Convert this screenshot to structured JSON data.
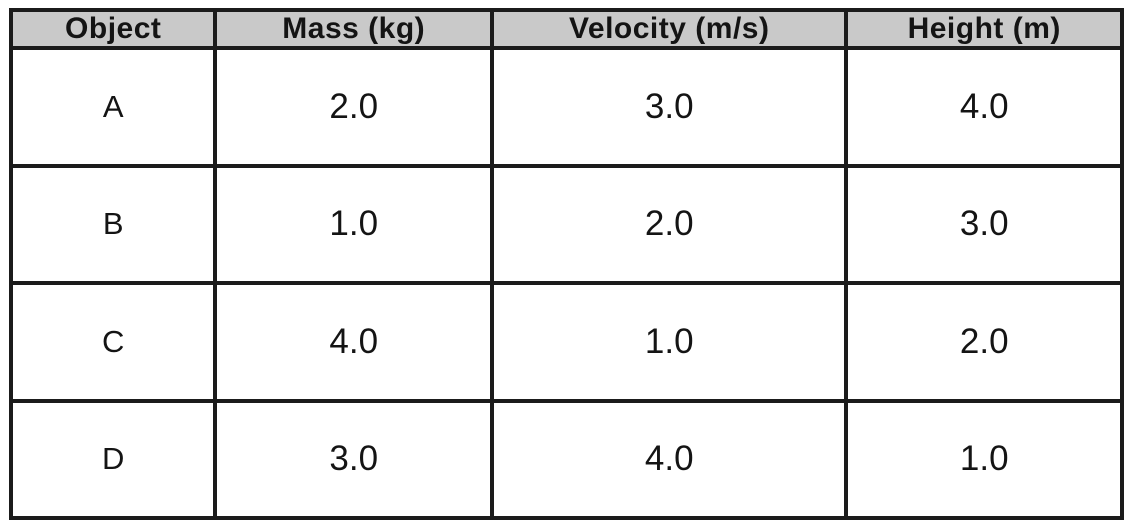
{
  "table": {
    "headers": [
      "Object",
      "Mass (kg)",
      "Velocity (m/s)",
      "Height (m)"
    ],
    "rows": [
      [
        "A",
        "2.0",
        "3.0",
        "4.0"
      ],
      [
        "B",
        "1.0",
        "2.0",
        "3.0"
      ],
      [
        "C",
        "4.0",
        "1.0",
        "2.0"
      ],
      [
        "D",
        "3.0",
        "4.0",
        "1.0"
      ]
    ]
  },
  "chart_data": {
    "type": "table",
    "columns": [
      "Object",
      "Mass (kg)",
      "Velocity (m/s)",
      "Height (m)"
    ],
    "rows": [
      {
        "object": "A",
        "mass_kg": 2.0,
        "velocity_m_s": 3.0,
        "height_m": 4.0
      },
      {
        "object": "B",
        "mass_kg": 1.0,
        "velocity_m_s": 2.0,
        "height_m": 3.0
      },
      {
        "object": "C",
        "mass_kg": 4.0,
        "velocity_m_s": 1.0,
        "height_m": 2.0
      },
      {
        "object": "D",
        "mass_kg": 3.0,
        "velocity_m_s": 4.0,
        "height_m": 1.0
      }
    ],
    "title": "",
    "notes": "Header row shaded gray; all cells center-aligned with thick black grid borders"
  },
  "colors": {
    "header_background": "#c9c9c9",
    "cell_background": "#ffffff",
    "border": "#1b1b1b",
    "text": "#141414"
  }
}
